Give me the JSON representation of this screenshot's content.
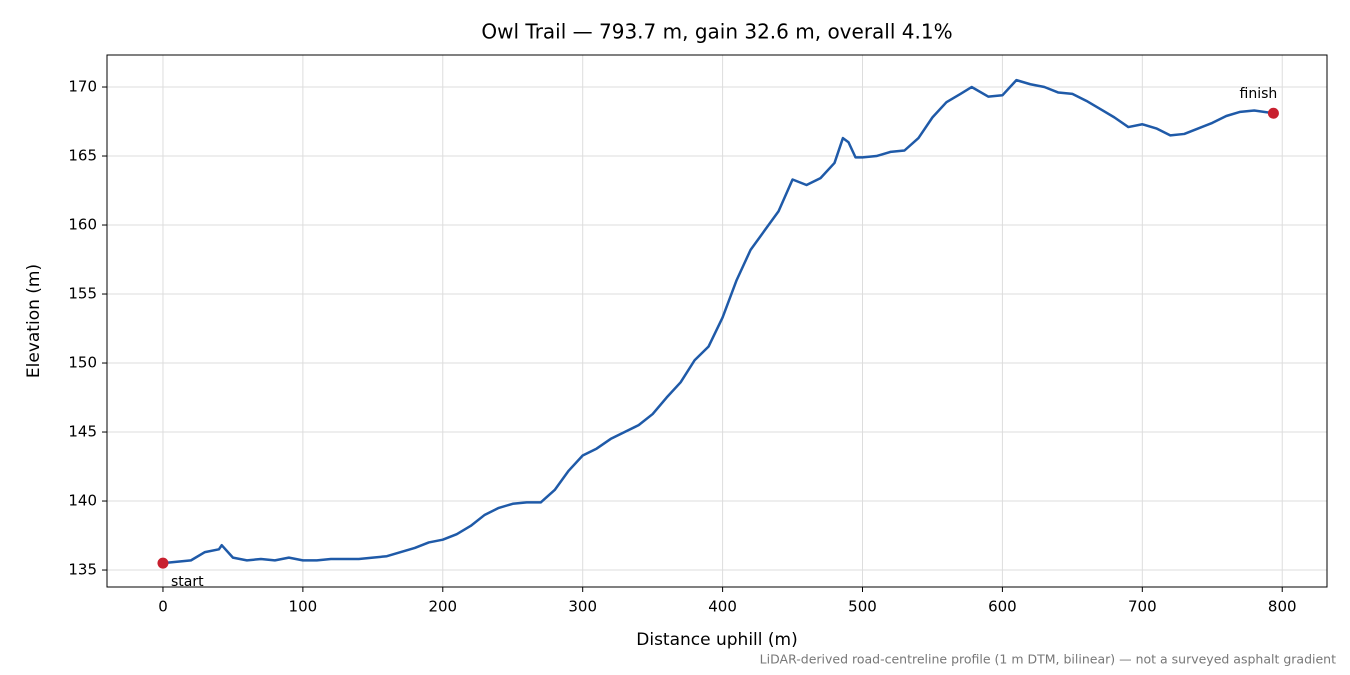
{
  "chart_data": {
    "type": "line",
    "title": "Owl Trail — 793.7 m, gain 32.6 m, overall 4.1%",
    "xlabel": "Distance uphill (m)",
    "ylabel": "Elevation (m)",
    "footnote": "LiDAR-derived road-centreline profile (1 m DTM, bilinear) — not a surveyed asphalt gradient",
    "color": "#1f5aa8",
    "x": [
      0,
      10,
      20,
      30,
      40,
      42,
      50,
      60,
      70,
      80,
      90,
      100,
      110,
      120,
      130,
      140,
      150,
      160,
      170,
      180,
      190,
      200,
      210,
      220,
      230,
      240,
      250,
      260,
      270,
      280,
      290,
      300,
      310,
      320,
      330,
      340,
      350,
      360,
      370,
      380,
      390,
      400,
      410,
      420,
      430,
      440,
      450,
      460,
      470,
      480,
      486,
      490,
      495,
      500,
      510,
      520,
      530,
      540,
      550,
      560,
      570,
      578,
      590,
      600,
      610,
      620,
      630,
      640,
      650,
      660,
      670,
      680,
      690,
      700,
      710,
      720,
      730,
      740,
      750,
      760,
      770,
      780,
      793.7
    ],
    "values": [
      135.5,
      135.6,
      135.7,
      136.3,
      136.5,
      136.8,
      135.9,
      135.7,
      135.8,
      135.7,
      135.9,
      135.7,
      135.7,
      135.8,
      135.8,
      135.8,
      135.9,
      136.0,
      136.3,
      136.6,
      137.0,
      137.2,
      137.6,
      138.2,
      139.0,
      139.5,
      139.8,
      139.9,
      139.9,
      140.8,
      142.2,
      143.3,
      143.8,
      144.5,
      145.0,
      145.5,
      146.3,
      147.5,
      148.6,
      150.2,
      151.2,
      153.3,
      156.0,
      158.2,
      159.6,
      161.0,
      163.3,
      162.9,
      163.4,
      164.5,
      166.3,
      166.0,
      164.9,
      164.9,
      165.0,
      165.3,
      165.4,
      166.3,
      167.8,
      168.9,
      169.5,
      170.0,
      169.3,
      169.4,
      170.5,
      170.2,
      170.0,
      169.6,
      169.5,
      169.0,
      168.4,
      167.8,
      167.1,
      167.3,
      167.0,
      166.5,
      166.6,
      167.0,
      167.4,
      167.9,
      168.2,
      168.3,
      168.1
    ],
    "markers": [
      {
        "label": "start",
        "x": 0,
        "y": 135.5,
        "color": "#c8202f"
      },
      {
        "label": "finish",
        "x": 793.7,
        "y": 168.1,
        "color": "#c8202f"
      }
    ],
    "xlim": [
      -40,
      832
    ],
    "ylim": [
      133.77,
      172.32
    ],
    "xticks": [
      0,
      100,
      200,
      300,
      400,
      500,
      600,
      700,
      800
    ],
    "yticks": [
      135,
      140,
      145,
      150,
      155,
      160,
      165,
      170
    ],
    "grid": true
  }
}
